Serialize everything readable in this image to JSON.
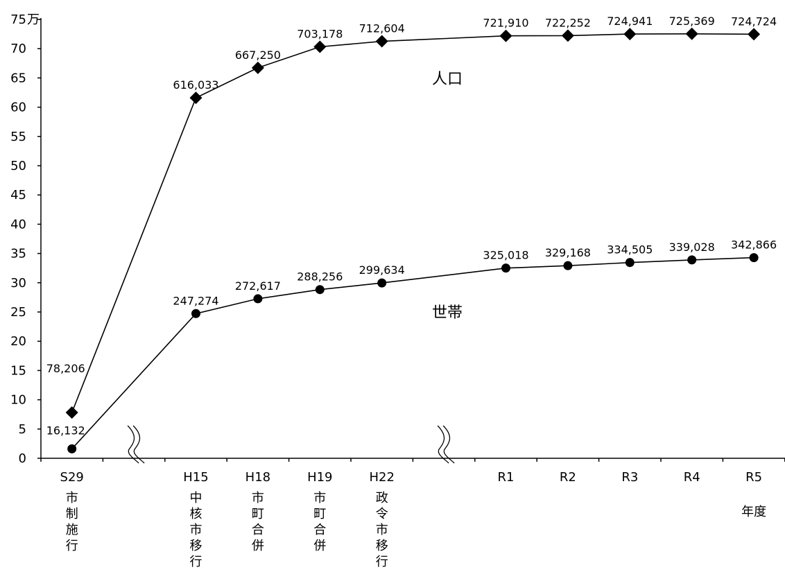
{
  "chart_data": {
    "type": "line",
    "title": "",
    "xlabel": "年度",
    "ylabel": "",
    "y_unit": "万",
    "ylim": [
      0,
      75
    ],
    "yticks": [
      "0",
      "5",
      "10",
      "15",
      "20",
      "25",
      "30",
      "35",
      "40",
      "45",
      "50",
      "55",
      "60",
      "65",
      "70",
      "75"
    ],
    "grid": false,
    "axis_breaks": true,
    "categories": [
      {
        "main": "S29",
        "sub": [
          "市",
          "制",
          "施",
          "行"
        ]
      },
      {
        "main": "",
        "sub": []
      },
      {
        "main": "H15",
        "sub": [
          "中",
          "核",
          "市",
          "移",
          "行"
        ]
      },
      {
        "main": "H18",
        "sub": [
          "市",
          "町",
          "合",
          "併"
        ]
      },
      {
        "main": "H19",
        "sub": [
          "市",
          "町",
          "合",
          "併"
        ]
      },
      {
        "main": "H22",
        "sub": [
          "政",
          "令",
          "市",
          "移",
          "行"
        ]
      },
      {
        "main": "",
        "sub": []
      },
      {
        "main": "R1",
        "sub": []
      },
      {
        "main": "R2",
        "sub": []
      },
      {
        "main": "R3",
        "sub": []
      },
      {
        "main": "R4",
        "sub": []
      },
      {
        "main": "R5",
        "sub": []
      }
    ],
    "series": [
      {
        "name": "人口",
        "marker": "diamond",
        "values": [
          78206,
          null,
          616033,
          667250,
          703178,
          712604,
          null,
          721910,
          722252,
          724941,
          725369,
          724724
        ],
        "labels": [
          "78,206",
          "",
          "616,033",
          "667,250",
          "703,178",
          "712,604",
          "",
          "721,910",
          "722,252",
          "724,941",
          "725,369",
          "724,724"
        ]
      },
      {
        "name": "世帯",
        "marker": "circle",
        "values": [
          16132,
          null,
          247274,
          272617,
          288256,
          299634,
          null,
          325018,
          329168,
          334505,
          339028,
          342866
        ],
        "labels": [
          "16,132",
          "",
          "247,274",
          "272,617",
          "288,256",
          "299,634",
          "",
          "325,018",
          "329,168",
          "334,505",
          "339,028",
          "342,866"
        ]
      }
    ],
    "colors": {
      "line": "#000000",
      "marker": "#000000"
    }
  }
}
